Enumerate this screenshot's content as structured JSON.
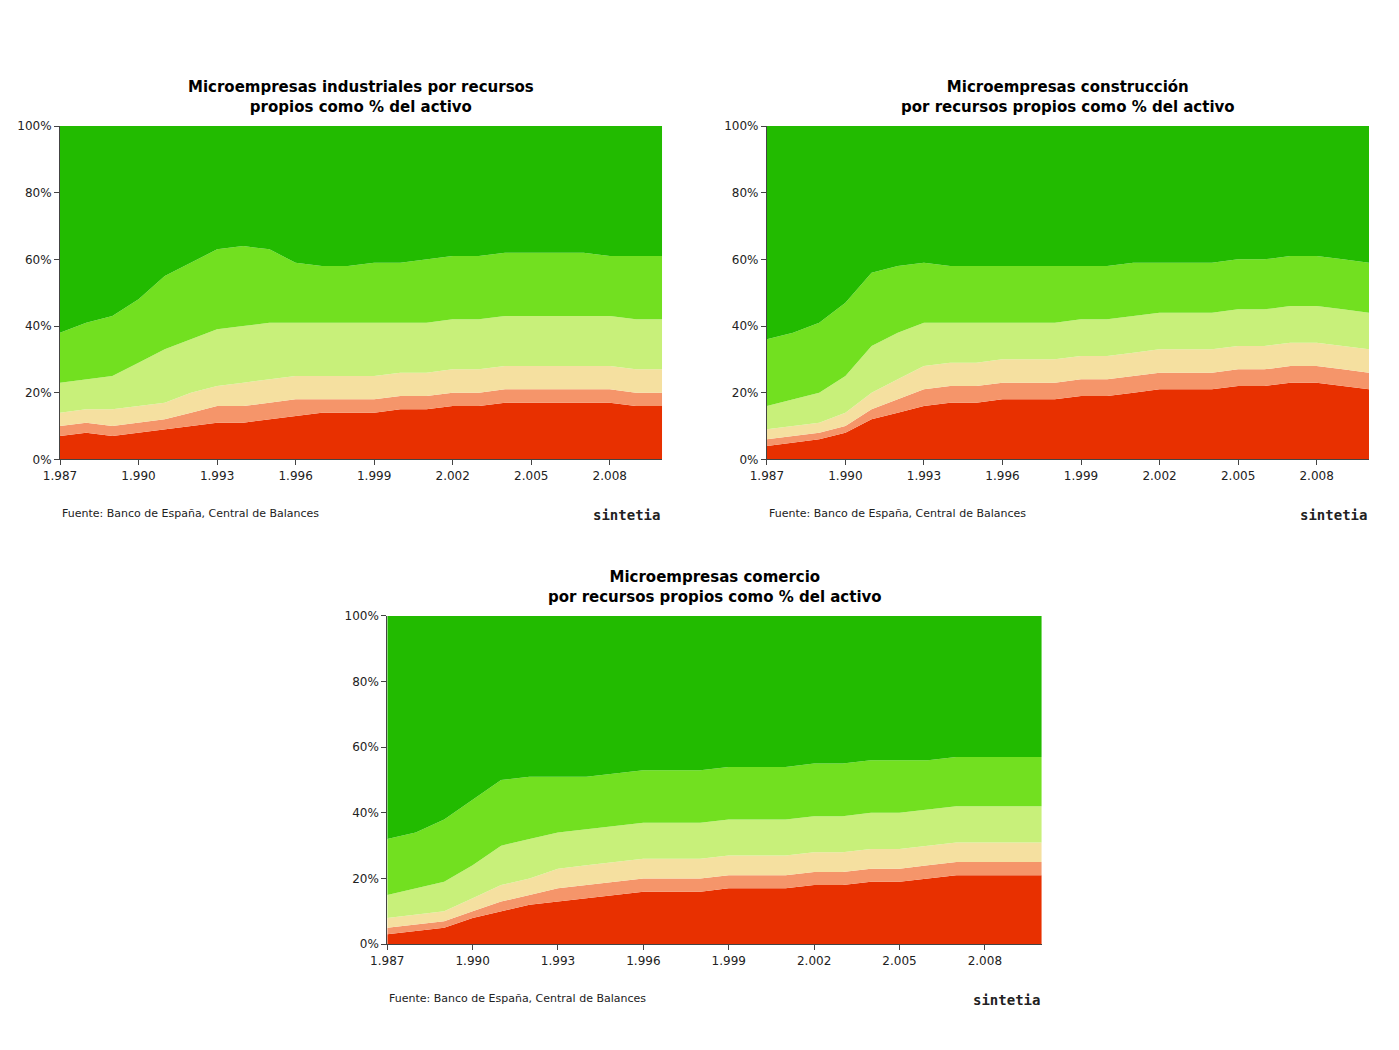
{
  "chart_data": [
    {
      "type": "area",
      "stacked": true,
      "grid": false,
      "title": "Microempresas industriales por recursos\npropios como % del activo",
      "annotations": [
        "Fuente: Banco de España, Central de Balances",
        "sintetia"
      ],
      "x": [
        1987,
        1988,
        1989,
        1990,
        1991,
        1992,
        1993,
        1994,
        1995,
        1996,
        1997,
        1998,
        1999,
        2000,
        2001,
        2002,
        2003,
        2004,
        2005,
        2006,
        2007,
        2008,
        2009,
        2010
      ],
      "xlim": [
        1987,
        2010
      ],
      "xticks": [
        {
          "value": 1987,
          "label": "1.987"
        },
        {
          "value": 1990,
          "label": "1.990"
        },
        {
          "value": 1993,
          "label": "1.993"
        },
        {
          "value": 1996,
          "label": "1.996"
        },
        {
          "value": 1999,
          "label": "1.999"
        },
        {
          "value": 2002,
          "label": "2.002"
        },
        {
          "value": 2005,
          "label": "2.005"
        },
        {
          "value": 2008,
          "label": "2.008"
        }
      ],
      "ylim": [
        0,
        100
      ],
      "yticks": [
        {
          "value": 0,
          "label": "0%"
        },
        {
          "value": 20,
          "label": "20%"
        },
        {
          "value": 40,
          "label": "40%"
        },
        {
          "value": 60,
          "label": "60%"
        },
        {
          "value": 80,
          "label": "80%"
        },
        {
          "value": 100,
          "label": "100%"
        }
      ],
      "series": [
        {
          "color": "#e83000",
          "values": [
            7,
            8,
            7,
            8,
            9,
            10,
            11,
            11,
            12,
            13,
            14,
            14,
            14,
            15,
            15,
            16,
            16,
            17,
            17,
            17,
            17,
            17,
            16,
            16
          ]
        },
        {
          "color": "#f5956a",
          "values": [
            3,
            3,
            3,
            3,
            3,
            4,
            5,
            5,
            5,
            5,
            4,
            4,
            4,
            4,
            4,
            4,
            4,
            4,
            4,
            4,
            4,
            4,
            4,
            4
          ]
        },
        {
          "color": "#f5e0a0",
          "values": [
            4,
            4,
            5,
            5,
            5,
            6,
            6,
            7,
            7,
            7,
            7,
            7,
            7,
            7,
            7,
            7,
            7,
            7,
            7,
            7,
            7,
            7,
            7,
            7
          ]
        },
        {
          "color": "#c8f07a",
          "values": [
            9,
            9,
            10,
            13,
            16,
            16,
            17,
            17,
            17,
            16,
            16,
            16,
            16,
            15,
            15,
            15,
            15,
            15,
            15,
            15,
            15,
            15,
            15,
            15
          ]
        },
        {
          "color": "#72e020",
          "values": [
            15,
            17,
            18,
            19,
            22,
            23,
            24,
            24,
            22,
            18,
            17,
            17,
            18,
            18,
            19,
            19,
            19,
            19,
            19,
            19,
            19,
            18,
            19,
            19
          ]
        },
        {
          "color": "#22bb00",
          "values": [
            62,
            59,
            57,
            52,
            45,
            41,
            37,
            36,
            37,
            41,
            42,
            42,
            41,
            41,
            40,
            39,
            39,
            38,
            38,
            38,
            38,
            39,
            39,
            39
          ]
        }
      ]
    },
    {
      "type": "area",
      "stacked": true,
      "grid": false,
      "title": "Microempresas construcción\npor recursos propios como % del activo",
      "annotations": [
        "Fuente: Banco de España, Central de Balances",
        "sintetia"
      ],
      "x": [
        1987,
        1988,
        1989,
        1990,
        1991,
        1992,
        1993,
        1994,
        1995,
        1996,
        1997,
        1998,
        1999,
        2000,
        2001,
        2002,
        2003,
        2004,
        2005,
        2006,
        2007,
        2008,
        2009,
        2010
      ],
      "xlim": [
        1987,
        2010
      ],
      "xticks": [
        {
          "value": 1987,
          "label": "1.987"
        },
        {
          "value": 1990,
          "label": "1.990"
        },
        {
          "value": 1993,
          "label": "1.993"
        },
        {
          "value": 1996,
          "label": "1.996"
        },
        {
          "value": 1999,
          "label": "1.999"
        },
        {
          "value": 2002,
          "label": "2.002"
        },
        {
          "value": 2005,
          "label": "2.005"
        },
        {
          "value": 2008,
          "label": "2.008"
        }
      ],
      "ylim": [
        0,
        100
      ],
      "yticks": [
        {
          "value": 0,
          "label": "0%"
        },
        {
          "value": 20,
          "label": "20%"
        },
        {
          "value": 40,
          "label": "40%"
        },
        {
          "value": 60,
          "label": "60%"
        },
        {
          "value": 80,
          "label": "80%"
        },
        {
          "value": 100,
          "label": "100%"
        }
      ],
      "series": [
        {
          "color": "#e83000",
          "values": [
            4,
            5,
            6,
            8,
            12,
            14,
            16,
            17,
            17,
            18,
            18,
            18,
            19,
            19,
            20,
            21,
            21,
            21,
            22,
            22,
            23,
            23,
            22,
            21
          ]
        },
        {
          "color": "#f5956a",
          "values": [
            2,
            2,
            2,
            2,
            3,
            4,
            5,
            5,
            5,
            5,
            5,
            5,
            5,
            5,
            5,
            5,
            5,
            5,
            5,
            5,
            5,
            5,
            5,
            5
          ]
        },
        {
          "color": "#f5e0a0",
          "values": [
            3,
            3,
            3,
            4,
            5,
            6,
            7,
            7,
            7,
            7,
            7,
            7,
            7,
            7,
            7,
            7,
            7,
            7,
            7,
            7,
            7,
            7,
            7,
            7
          ]
        },
        {
          "color": "#c8f07a",
          "values": [
            7,
            8,
            9,
            11,
            14,
            14,
            13,
            12,
            12,
            11,
            11,
            11,
            11,
            11,
            11,
            11,
            11,
            11,
            11,
            11,
            11,
            11,
            11,
            11
          ]
        },
        {
          "color": "#72e020",
          "values": [
            20,
            20,
            21,
            22,
            22,
            20,
            18,
            17,
            17,
            17,
            17,
            17,
            16,
            16,
            16,
            15,
            15,
            15,
            15,
            15,
            15,
            15,
            15,
            15
          ]
        },
        {
          "color": "#22bb00",
          "values": [
            64,
            62,
            59,
            53,
            44,
            42,
            41,
            42,
            42,
            42,
            42,
            42,
            42,
            42,
            41,
            41,
            41,
            41,
            40,
            40,
            39,
            39,
            40,
            41
          ]
        }
      ]
    },
    {
      "type": "area",
      "stacked": true,
      "grid": false,
      "title": "Microempresas comercio\npor recursos propios como % del activo",
      "annotations": [
        "Fuente: Banco de España, Central de Balances",
        "sintetia"
      ],
      "x": [
        1987,
        1988,
        1989,
        1990,
        1991,
        1992,
        1993,
        1994,
        1995,
        1996,
        1997,
        1998,
        1999,
        2000,
        2001,
        2002,
        2003,
        2004,
        2005,
        2006,
        2007,
        2008,
        2009,
        2010
      ],
      "xlim": [
        1987,
        2010
      ],
      "xticks": [
        {
          "value": 1987,
          "label": "1.987"
        },
        {
          "value": 1990,
          "label": "1.990"
        },
        {
          "value": 1993,
          "label": "1.993"
        },
        {
          "value": 1996,
          "label": "1.996"
        },
        {
          "value": 1999,
          "label": "1.999"
        },
        {
          "value": 2002,
          "label": "2.002"
        },
        {
          "value": 2005,
          "label": "2.005"
        },
        {
          "value": 2008,
          "label": "2.008"
        }
      ],
      "ylim": [
        0,
        100
      ],
      "yticks": [
        {
          "value": 0,
          "label": "0%"
        },
        {
          "value": 20,
          "label": "20%"
        },
        {
          "value": 40,
          "label": "40%"
        },
        {
          "value": 60,
          "label": "60%"
        },
        {
          "value": 80,
          "label": "80%"
        },
        {
          "value": 100,
          "label": "100%"
        }
      ],
      "series": [
        {
          "color": "#e83000",
          "values": [
            3,
            4,
            5,
            8,
            10,
            12,
            13,
            14,
            15,
            16,
            16,
            16,
            17,
            17,
            17,
            18,
            18,
            19,
            19,
            20,
            21,
            21,
            21,
            21
          ]
        },
        {
          "color": "#f5956a",
          "values": [
            2,
            2,
            2,
            2,
            3,
            3,
            4,
            4,
            4,
            4,
            4,
            4,
            4,
            4,
            4,
            4,
            4,
            4,
            4,
            4,
            4,
            4,
            4,
            4
          ]
        },
        {
          "color": "#f5e0a0",
          "values": [
            3,
            3,
            3,
            4,
            5,
            5,
            6,
            6,
            6,
            6,
            6,
            6,
            6,
            6,
            6,
            6,
            6,
            6,
            6,
            6,
            6,
            6,
            6,
            6
          ]
        },
        {
          "color": "#c8f07a",
          "values": [
            7,
            8,
            9,
            10,
            12,
            12,
            11,
            11,
            11,
            11,
            11,
            11,
            11,
            11,
            11,
            11,
            11,
            11,
            11,
            11,
            11,
            11,
            11,
            11
          ]
        },
        {
          "color": "#72e020",
          "values": [
            17,
            17,
            19,
            20,
            20,
            19,
            17,
            16,
            16,
            16,
            16,
            16,
            16,
            16,
            16,
            16,
            16,
            16,
            16,
            15,
            15,
            15,
            15,
            15
          ]
        },
        {
          "color": "#22bb00",
          "values": [
            68,
            66,
            62,
            56,
            50,
            49,
            49,
            49,
            48,
            47,
            47,
            47,
            46,
            46,
            46,
            45,
            45,
            44,
            44,
            44,
            43,
            43,
            43,
            43
          ]
        }
      ]
    }
  ]
}
